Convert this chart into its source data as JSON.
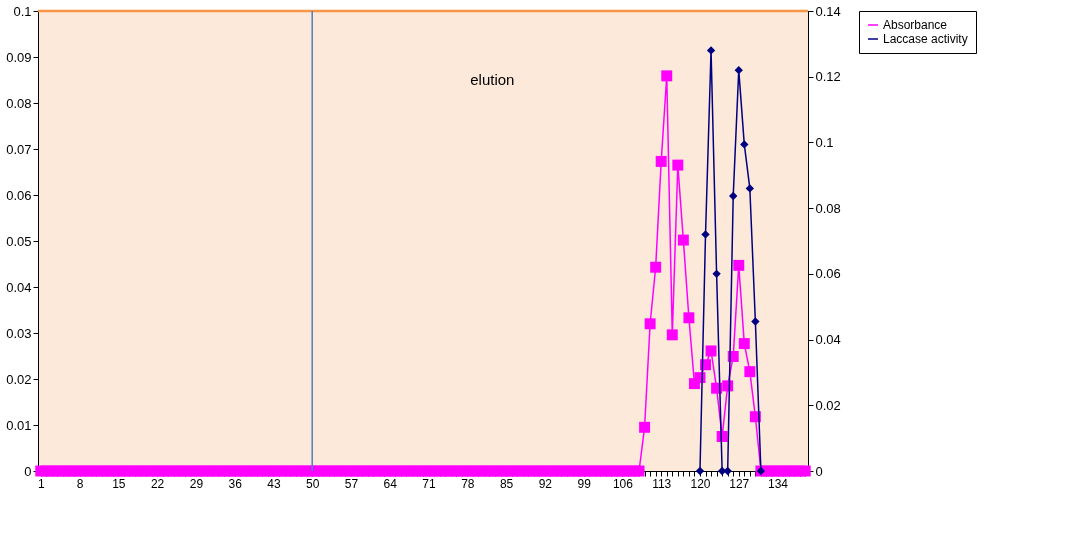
{
  "chart_data": {
    "type": "line",
    "categories": [
      "1",
      null,
      null,
      null,
      null,
      null,
      null,
      "8",
      null,
      null,
      null,
      null,
      null,
      null,
      "15",
      null,
      null,
      null,
      null,
      null,
      null,
      "22",
      null,
      null,
      null,
      null,
      null,
      null,
      "29",
      null,
      null,
      null,
      null,
      null,
      null,
      "36",
      null,
      null,
      null,
      null,
      null,
      null,
      "43",
      null,
      null,
      null,
      null,
      null,
      null,
      "50",
      null,
      null,
      null,
      null,
      null,
      null,
      "57",
      null,
      null,
      null,
      null,
      null,
      null,
      "64",
      null,
      null,
      null,
      null,
      null,
      null,
      "71",
      null,
      null,
      null,
      null,
      null,
      null,
      "78",
      null,
      null,
      null,
      null,
      null,
      null,
      "85",
      null,
      null,
      null,
      null,
      null,
      null,
      "92",
      null,
      null,
      null,
      null,
      null,
      null,
      "99",
      null,
      null,
      null,
      null,
      null,
      null,
      "106",
      null,
      null,
      null,
      null,
      null,
      null,
      "113",
      null,
      null,
      null,
      null,
      null,
      null,
      "120",
      null,
      null,
      null,
      null,
      null,
      null,
      "127",
      null,
      null,
      null,
      null,
      null,
      null,
      "134",
      null,
      null,
      null,
      null,
      null
    ],
    "series": [
      {
        "name": "Absorbance",
        "color": "#ff00ff",
        "marker": "square",
        "values": [
          0,
          0,
          0,
          0,
          0,
          0,
          0,
          0,
          0,
          0,
          0,
          0,
          0,
          0,
          0,
          0,
          0,
          0,
          0,
          0,
          0,
          0,
          0,
          0,
          0,
          0,
          0,
          0,
          0,
          0,
          0,
          0,
          0,
          0,
          0,
          0,
          0,
          0,
          0,
          0,
          0,
          0,
          0,
          0,
          0,
          0,
          0,
          0,
          0,
          0,
          0,
          0,
          0,
          0,
          0,
          0,
          0,
          0,
          0,
          0,
          0,
          0,
          0,
          0,
          0,
          0,
          0,
          0,
          0,
          0,
          0,
          0,
          0,
          0,
          0,
          0,
          0,
          0,
          0,
          0,
          0,
          0,
          0,
          0,
          0,
          0,
          0,
          0,
          0,
          0,
          0,
          0,
          0,
          0,
          0,
          0,
          0,
          0,
          0,
          0,
          0,
          0,
          0,
          0,
          0,
          0,
          0,
          0,
          0,
          0.0095,
          0.032,
          0.0443,
          0.0673,
          0.0859,
          0.0296,
          0.0665,
          0.0502,
          0.0333,
          0.019,
          0.0203,
          0.0231,
          0.0261,
          0.018,
          0.0075,
          0.0185,
          0.0249,
          0.0447,
          0.0277,
          0.0216,
          0.0118,
          0,
          0,
          0,
          0,
          0,
          0,
          0,
          0,
          0
        ]
      },
      {
        "name": "Laccase activity",
        "color": "#000080",
        "marker": "diamond",
        "axis": "y2",
        "values": [
          null,
          null,
          null,
          null,
          null,
          null,
          null,
          null,
          null,
          null,
          null,
          null,
          null,
          null,
          null,
          null,
          null,
          null,
          null,
          null,
          null,
          null,
          null,
          null,
          null,
          null,
          null,
          null,
          null,
          null,
          null,
          null,
          null,
          null,
          null,
          null,
          null,
          null,
          null,
          null,
          null,
          null,
          null,
          null,
          null,
          null,
          null,
          null,
          null,
          null,
          null,
          null,
          null,
          null,
          null,
          null,
          null,
          null,
          null,
          null,
          null,
          null,
          null,
          null,
          null,
          null,
          null,
          null,
          null,
          null,
          null,
          null,
          null,
          null,
          null,
          null,
          null,
          null,
          null,
          null,
          null,
          null,
          null,
          null,
          null,
          null,
          null,
          null,
          null,
          null,
          null,
          null,
          null,
          null,
          null,
          null,
          null,
          null,
          null,
          null,
          null,
          null,
          null,
          null,
          null,
          null,
          null,
          null,
          null,
          null,
          null,
          null,
          null,
          null,
          null,
          null,
          null,
          null,
          null,
          0,
          0.072,
          0.128,
          0.06,
          0,
          0,
          0.0837,
          0.122,
          0.0994,
          0.086,
          0.0455,
          0,
          null,
          null,
          null,
          null,
          null,
          null,
          null,
          null
        ]
      }
    ],
    "ylim": [
      0,
      0.1
    ],
    "yticks": [
      0,
      0.01,
      0.02,
      0.03,
      0.04,
      0.05,
      0.06,
      0.07,
      0.08,
      0.09,
      0.1
    ],
    "y2lim": [
      0,
      0.14
    ],
    "y2ticks": [
      0,
      0.02,
      0.04,
      0.06,
      0.08,
      0.1,
      0.12,
      0.14
    ],
    "ref_lines": [
      {
        "axis": "y",
        "value": 0.1,
        "color": "#f79646"
      },
      {
        "axis": "x",
        "value": "50",
        "color": "#4f81bd"
      }
    ],
    "annotations": [
      "elution"
    ],
    "grid": false,
    "legend": "right"
  }
}
